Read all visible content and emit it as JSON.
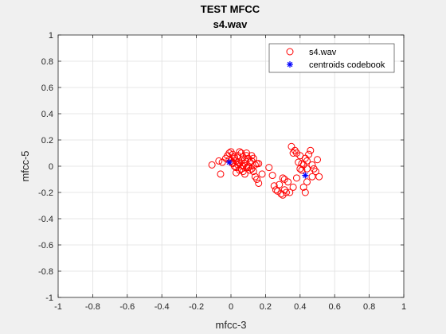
{
  "chart_data": {
    "type": "scatter",
    "title": "TEST MFCC",
    "subtitle": "s4.wav",
    "xlabel": "mfcc-3",
    "ylabel": "mfcc-5",
    "xlim": [
      -1,
      1
    ],
    "ylim": [
      -1,
      1
    ],
    "grid": true,
    "legend_position": "top-right",
    "x_ticks": [
      "-1",
      "-0.8",
      "-0.6",
      "-0.4",
      "-0.2",
      "0",
      "0.2",
      "0.4",
      "0.6",
      "0.8",
      "1"
    ],
    "y_ticks": [
      "-1",
      "-0.8",
      "-0.6",
      "-0.4",
      "-0.2",
      "0",
      "0.2",
      "0.4",
      "0.6",
      "0.8",
      "1"
    ],
    "series": [
      {
        "name": "s4.wav",
        "marker": "circle",
        "color": "#ff0000",
        "points": [
          [
            -0.11,
            0.01
          ],
          [
            -0.07,
            0.04
          ],
          [
            -0.06,
            -0.06
          ],
          [
            -0.05,
            0.03
          ],
          [
            -0.03,
            0.06
          ],
          [
            -0.02,
            0.08
          ],
          [
            -0.01,
            0.1
          ],
          [
            0.0,
            0.11
          ],
          [
            0.01,
            0.09
          ],
          [
            0.02,
            0.06
          ],
          [
            0.03,
            0.04
          ],
          [
            0.04,
            0.08
          ],
          [
            0.05,
            0.11
          ],
          [
            0.06,
            0.1
          ],
          [
            0.07,
            0.07
          ],
          [
            0.08,
            0.05
          ],
          [
            0.09,
            0.08
          ],
          [
            0.1,
            0.06
          ],
          [
            0.11,
            0.03
          ],
          [
            0.12,
            0.04
          ],
          [
            0.13,
            0.06
          ],
          [
            0.14,
            0.01
          ],
          [
            0.15,
            0.02
          ],
          [
            0.16,
            0.02
          ],
          [
            0.0,
            0.04
          ],
          [
            0.01,
            0.02
          ],
          [
            0.02,
            0.0
          ],
          [
            0.03,
            -0.01
          ],
          [
            0.04,
            0.01
          ],
          [
            0.05,
            0.02
          ],
          [
            0.06,
            -0.02
          ],
          [
            0.07,
            -0.04
          ],
          [
            0.08,
            -0.06
          ],
          [
            0.09,
            -0.01
          ],
          [
            0.1,
            -0.01
          ],
          [
            0.11,
            -0.03
          ],
          [
            0.12,
            -0.02
          ],
          [
            0.13,
            -0.04
          ],
          [
            0.14,
            -0.08
          ],
          [
            0.15,
            -0.1
          ],
          [
            0.16,
            -0.13
          ],
          [
            0.18,
            -0.06
          ],
          [
            0.01,
            0.03
          ],
          [
            -0.01,
            0.05
          ],
          [
            0.02,
            0.07
          ],
          [
            0.04,
            0.03
          ],
          [
            0.06,
            0.04
          ],
          [
            0.08,
            0.02
          ],
          [
            0.1,
            0.0
          ],
          [
            0.03,
            -0.05
          ],
          [
            0.05,
            -0.03
          ],
          [
            0.07,
            0.0
          ],
          [
            0.12,
            0.08
          ],
          [
            0.09,
            0.1
          ],
          [
            0.22,
            -0.01
          ],
          [
            0.24,
            -0.07
          ],
          [
            0.25,
            -0.15
          ],
          [
            0.26,
            -0.18
          ],
          [
            0.27,
            -0.19
          ],
          [
            0.28,
            -0.14
          ],
          [
            0.29,
            -0.21
          ],
          [
            0.3,
            -0.22
          ],
          [
            0.31,
            -0.18
          ],
          [
            0.32,
            -0.2
          ],
          [
            0.3,
            -0.09
          ],
          [
            0.31,
            -0.1
          ],
          [
            0.33,
            -0.12
          ],
          [
            0.34,
            -0.2
          ],
          [
            0.36,
            -0.16
          ],
          [
            0.35,
            0.15
          ],
          [
            0.37,
            0.12
          ],
          [
            0.38,
            0.1
          ],
          [
            0.39,
            0.03
          ],
          [
            0.4,
            -0.02
          ],
          [
            0.41,
            -0.03
          ],
          [
            0.42,
            0.01
          ],
          [
            0.43,
            0.06
          ],
          [
            0.44,
            0.04
          ],
          [
            0.45,
            0.09
          ],
          [
            0.46,
            0.12
          ],
          [
            0.47,
            0.01
          ],
          [
            0.48,
            -0.02
          ],
          [
            0.49,
            -0.04
          ],
          [
            0.5,
            0.05
          ],
          [
            0.51,
            -0.08
          ],
          [
            0.47,
            -0.08
          ],
          [
            0.44,
            -0.12
          ],
          [
            0.43,
            -0.2
          ],
          [
            0.42,
            -0.16
          ],
          [
            0.41,
            0.02
          ],
          [
            0.4,
            0.08
          ],
          [
            0.38,
            -0.09
          ],
          [
            0.44,
            -0.02
          ],
          [
            0.36,
            0.1
          ]
        ]
      },
      {
        "name": "centroids codebook",
        "marker": "star",
        "color": "#0000ff",
        "points": [
          [
            -0.01,
            0.03
          ],
          [
            0.43,
            -0.07
          ]
        ]
      }
    ]
  }
}
